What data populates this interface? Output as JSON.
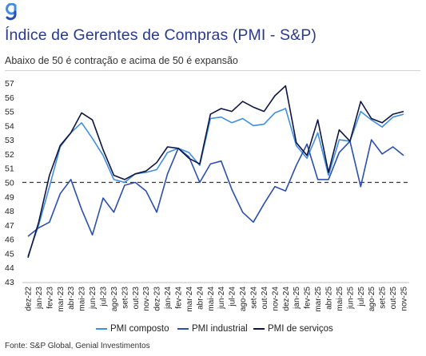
{
  "header": {
    "logo_text": "g",
    "title": "Índice de Gerentes de Compras (PMI - S&P)",
    "subtitle": "Abaixo de 50 é contração e acima de 50 é expansão"
  },
  "footer": {
    "source": "Fonte: S&P Global, Genial Investimentos"
  },
  "chart_data": {
    "type": "line",
    "categories": [
      "dez-22",
      "jan-23",
      "fev-23",
      "mar-23",
      "abr-23",
      "mai-23",
      "jun-23",
      "jul-23",
      "ago-23",
      "set-23",
      "out-23",
      "nov-23",
      "dez-23",
      "jan-24",
      "fev-24",
      "mar-24",
      "abr-24",
      "mai-24",
      "jun-24",
      "jul-24",
      "ago-24",
      "set-24",
      "out-24",
      "nov-24",
      "dez-24",
      "jan-25",
      "fev-25",
      "mar-25",
      "abr-25",
      "mai-25",
      "jun-25",
      "jul-25",
      "ago-25",
      "set-25",
      "out-25",
      "nov-25"
    ],
    "tick_labels": [
      "dez-22",
      "jan-23",
      "fev-23",
      "mar-23",
      "abr-23",
      "mai-23",
      "jun-23",
      "jul-23",
      "ago-23",
      "set-23",
      "out-23",
      "nov-23",
      "dez-23",
      "jan-24",
      "fev-24",
      "mar-24",
      "abr-24",
      "mai-24",
      "jun-24",
      "jul-24",
      "ago-24",
      "set-24",
      "out-24",
      "nov-24",
      "dez-24",
      "jan-25",
      "fev-25",
      "mar-25",
      "abr-25",
      "mai-25",
      "jun-25",
      "jul-25",
      "ago-25",
      "set-25",
      "out-25",
      "nov-25"
    ],
    "series": [
      {
        "name": "PMI composto",
        "color": "#3f8ee0",
        "values": [
          44.8,
          47.0,
          49.7,
          52.5,
          53.5,
          54.2,
          53.1,
          51.9,
          50.2,
          50.0,
          50.6,
          50.7,
          50.9,
          52.1,
          52.4,
          52.1,
          51.2,
          54.5,
          54.6,
          54.2,
          54.5,
          54.0,
          54.1,
          54.9,
          55.2,
          52.6,
          51.7,
          53.5,
          50.5,
          53.0,
          52.9,
          55.0,
          54.4,
          53.9,
          54.6,
          54.8
        ]
      },
      {
        "name": "PMI industrial",
        "color": "#2b4eb0",
        "values": [
          46.2,
          46.8,
          47.2,
          49.2,
          50.2,
          48.1,
          46.3,
          48.9,
          47.9,
          49.8,
          50.0,
          49.4,
          47.9,
          50.6,
          52.4,
          51.8,
          50.0,
          51.3,
          51.5,
          49.5,
          47.9,
          47.2,
          48.5,
          49.7,
          49.4,
          51.2,
          52.7,
          50.2,
          50.2,
          52.1,
          52.9,
          49.7,
          53.0,
          52.0,
          52.5,
          51.9
        ]
      },
      {
        "name": "PMI de serviços",
        "color": "#0f1542",
        "values": [
          44.7,
          47.2,
          50.5,
          52.6,
          53.5,
          54.9,
          54.4,
          52.3,
          50.5,
          50.2,
          50.6,
          50.8,
          51.4,
          52.5,
          52.4,
          51.7,
          51.3,
          54.8,
          55.2,
          55.0,
          55.7,
          55.3,
          55.0,
          56.1,
          56.8,
          52.8,
          51.9,
          54.4,
          50.7,
          53.7,
          52.9,
          55.7,
          54.5,
          54.2,
          54.8,
          55.0
        ]
      }
    ],
    "reference_line": 50,
    "ylim": [
      43,
      57
    ],
    "yticks": [
      43,
      44,
      45,
      46,
      47,
      48,
      49,
      50,
      51,
      52,
      53,
      54,
      55,
      56,
      57
    ],
    "legend_position": "bottom",
    "grid": false
  }
}
